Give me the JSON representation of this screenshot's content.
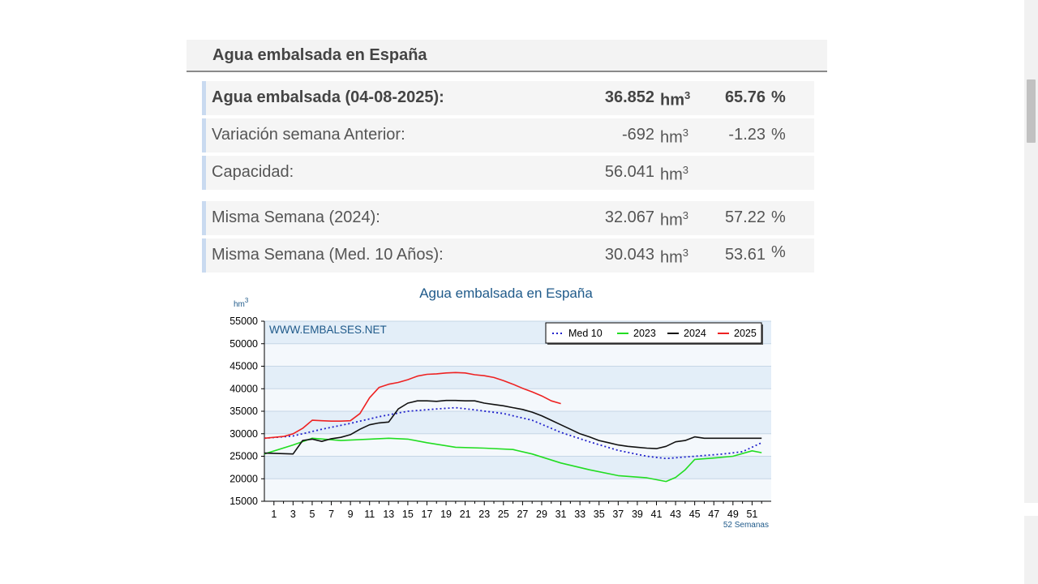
{
  "header": {
    "title": "Agua embalsada en España"
  },
  "stats": [
    {
      "label": "Agua embalsada (04-08-2025):",
      "value": "36.852",
      "unit": "hm",
      "unit_sup": "3",
      "pct": "65.76",
      "pct_symbol": "%",
      "bold": true
    },
    {
      "label": "Variación semana Anterior:",
      "value": "-692",
      "unit": "hm",
      "unit_sup": "3",
      "pct": "-1.23",
      "pct_symbol": "%",
      "bold": false
    },
    {
      "label": "Capacidad:",
      "value": "56.041",
      "unit": "hm",
      "unit_sup": "3",
      "pct": "",
      "pct_symbol": "",
      "bold": false
    },
    {
      "label": "Misma Semana (2024):",
      "value": "32.067",
      "unit": "hm",
      "unit_sup": "3",
      "pct": "57.22",
      "pct_symbol": "%",
      "bold": false
    },
    {
      "label": "Misma Semana (Med. 10 Años):",
      "value": "30.043",
      "unit": "hm",
      "unit_sup": "3",
      "pct": "53.61",
      "pct_symbol": "%",
      "bold": false
    }
  ],
  "colors": {
    "med10": "#2222cc",
    "y2023": "#22dd22",
    "y2024": "#111111",
    "y2025": "#ee2222",
    "band_light": "#e3eef8",
    "band_white": "#f4f8fc",
    "title": "#1f5a8a"
  },
  "chart_data": {
    "type": "line",
    "title": "Agua embalsada en España",
    "ylabel": "hm",
    "ylabel_sup": "3",
    "xlabel": "52 Semanas",
    "watermark": "WWW.EMBALSES.NET",
    "ylim": [
      15000,
      55000
    ],
    "xlim": [
      0,
      53
    ],
    "yticks": [
      15000,
      20000,
      25000,
      30000,
      35000,
      40000,
      45000,
      50000,
      55000
    ],
    "xticks": [
      1,
      3,
      5,
      7,
      9,
      11,
      13,
      15,
      17,
      19,
      21,
      23,
      25,
      27,
      29,
      31,
      33,
      35,
      37,
      39,
      41,
      43,
      45,
      47,
      49,
      51
    ],
    "legend_position": "top-right",
    "grid": true,
    "series": [
      {
        "name": "Med 10",
        "style": "dotted",
        "x": [
          0,
          3,
          6,
          9,
          12,
          15,
          18,
          20,
          22,
          25,
          28,
          31,
          34,
          37,
          40,
          42,
          45,
          48,
          50,
          52
        ],
        "y": [
          29000,
          29500,
          31000,
          32300,
          33800,
          35000,
          35500,
          35800,
          35300,
          34500,
          33000,
          30300,
          28200,
          26300,
          25000,
          24500,
          25000,
          25500,
          26000,
          28000
        ]
      },
      {
        "name": "2023",
        "x": [
          0,
          3,
          5,
          8,
          11,
          13,
          15,
          17,
          20,
          23,
          26,
          28,
          31,
          34,
          37,
          40,
          42,
          43,
          44,
          45,
          47,
          49,
          51,
          52
        ],
        "y": [
          25500,
          27500,
          29000,
          28500,
          28800,
          29000,
          28800,
          28000,
          27000,
          26800,
          26500,
          25500,
          23500,
          22000,
          20700,
          20200,
          19400,
          20300,
          22000,
          24300,
          24600,
          25000,
          26200,
          25800
        ]
      },
      {
        "name": "2024",
        "x": [
          0,
          3,
          4,
          5,
          6,
          7,
          8,
          9,
          10,
          11,
          12,
          13,
          14,
          15,
          16,
          17,
          18,
          19,
          20,
          21,
          22,
          23,
          24,
          25,
          26,
          27,
          28,
          29,
          30,
          31,
          32,
          33,
          34,
          35,
          36,
          37,
          38,
          39,
          40,
          41,
          42,
          43,
          44,
          45,
          46,
          47,
          48,
          49,
          50,
          51,
          52
        ],
        "y": [
          25700,
          25500,
          28500,
          28800,
          28300,
          28900,
          29200,
          29800,
          31000,
          32000,
          32400,
          32600,
          35500,
          36800,
          37300,
          37300,
          37200,
          37400,
          37400,
          37300,
          37300,
          36800,
          36500,
          36200,
          35800,
          35400,
          34800,
          34000,
          33000,
          32000,
          31000,
          30000,
          29300,
          28500,
          28000,
          27500,
          27200,
          27000,
          26800,
          26700,
          27200,
          28200,
          28500,
          29300,
          29000,
          29000,
          29000,
          29000,
          29000,
          29000,
          29000
        ]
      },
      {
        "name": "2025",
        "x": [
          0,
          2,
          3,
          4,
          5,
          6,
          7,
          8,
          9,
          10,
          11,
          12,
          13,
          14,
          15,
          16,
          17,
          18,
          19,
          20,
          21,
          22,
          23,
          24,
          25,
          26,
          27,
          28,
          29,
          30,
          31
        ],
        "y": [
          29000,
          29400,
          30000,
          31200,
          33000,
          32900,
          32800,
          32800,
          32900,
          34500,
          38000,
          40300,
          41000,
          41400,
          42000,
          42800,
          43200,
          43300,
          43500,
          43600,
          43500,
          43100,
          42900,
          42500,
          41800,
          41000,
          40100,
          39300,
          38400,
          37300,
          36700
        ]
      }
    ]
  }
}
